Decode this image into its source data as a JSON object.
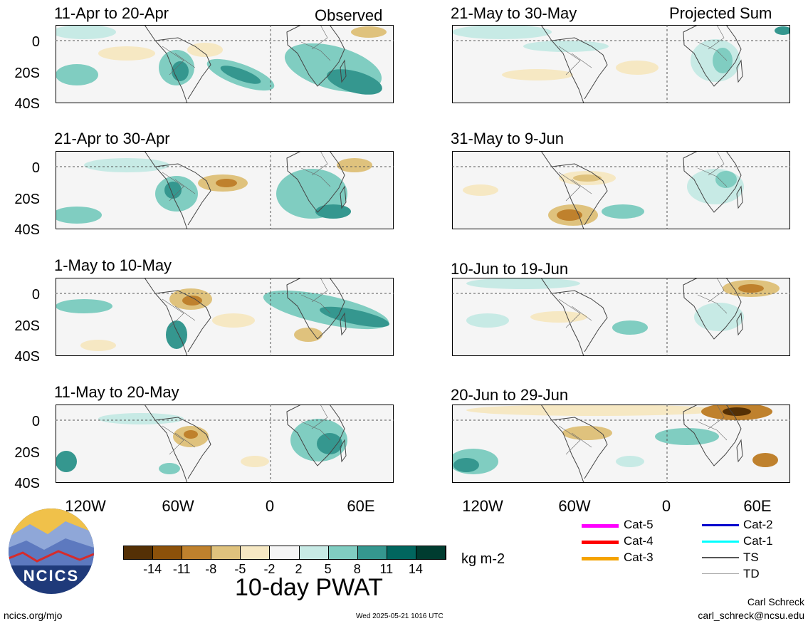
{
  "observed_label": "Observed",
  "projected_label": "Projected Sum",
  "panels_left": [
    {
      "title": "11-Apr to 20-Apr"
    },
    {
      "title": "21-Apr to 30-Apr"
    },
    {
      "title": "1-May to 10-May"
    },
    {
      "title": "11-May to 20-May"
    }
  ],
  "panels_right": [
    {
      "title": "21-May to 30-May"
    },
    {
      "title": "31-May to 9-Jun"
    },
    {
      "title": "10-Jun to 19-Jun"
    },
    {
      "title": "20-Jun to 29-Jun"
    }
  ],
  "y_ticks": [
    "0",
    "20S",
    "40S"
  ],
  "x_ticks": [
    "120W",
    "60W",
    "0",
    "60E"
  ],
  "colorbar": {
    "ticks": [
      "-14",
      "-11",
      "-8",
      "-5",
      "-2",
      "2",
      "5",
      "8",
      "11",
      "14"
    ],
    "colors": [
      "#543005",
      "#8c510a",
      "#bf812d",
      "#dfc27d",
      "#f6e8c3",
      "#f5f5f5",
      "#c7eae5",
      "#80cdc1",
      "#35978f",
      "#01665e",
      "#003c30"
    ],
    "units": "kg m-2",
    "title": "10-day PWAT"
  },
  "legend": [
    {
      "label": "Cat-5",
      "color": "#ff00ff"
    },
    {
      "label": "Cat-4",
      "color": "#ff0000"
    },
    {
      "label": "Cat-3",
      "color": "#f5a300"
    },
    {
      "label": "Cat-2",
      "color": "#0000cc"
    },
    {
      "label": "Cat-1",
      "color": "#00ffff"
    },
    {
      "label": "TS",
      "color": "#555555"
    },
    {
      "label": "TD",
      "color": "#aaaaaa"
    }
  ],
  "logo_text": "NCICS",
  "footer": {
    "url": "ncics.org/mjo",
    "timestamp": "Wed 2025-05-21 1016 UTC",
    "author": "Carl Schreck",
    "email": "carl_schreck@ncsu.edu"
  }
}
